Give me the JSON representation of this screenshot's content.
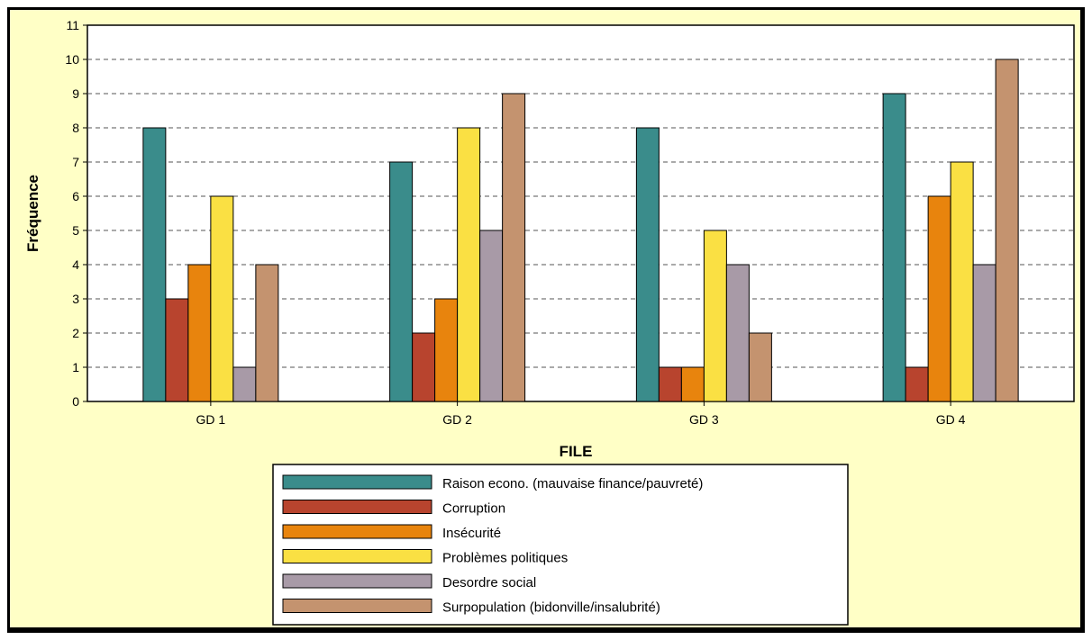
{
  "chart_data": {
    "type": "bar",
    "title": "",
    "xlabel": "FILE",
    "ylabel": "Fréquence",
    "ylim": [
      0,
      11
    ],
    "yticks": [
      0,
      1,
      2,
      3,
      4,
      5,
      6,
      7,
      8,
      9,
      10,
      11
    ],
    "grid": "horizontal dashed",
    "legend_position": "bottom",
    "categories": [
      "GD 1",
      "GD 2",
      "GD 3",
      "GD 4"
    ],
    "series": [
      {
        "name": "Raison econo. (mauvaise finance/pauvreté)",
        "color": "#3a8c8b",
        "values": [
          8,
          7,
          8,
          9
        ]
      },
      {
        "name": "Corruption",
        "color": "#b8442e",
        "values": [
          3,
          2,
          1,
          1
        ]
      },
      {
        "name": "Insécurité",
        "color": "#e8840d",
        "values": [
          4,
          3,
          1,
          6
        ]
      },
      {
        "name": "Problèmes politiques",
        "color": "#fae043",
        "values": [
          6,
          8,
          5,
          7
        ]
      },
      {
        "name": "Desordre social",
        "color": "#a89aa7",
        "values": [
          1,
          5,
          4,
          4
        ]
      },
      {
        "name": "Surpopulation (bidonville/insalubrité)",
        "color": "#c4936f",
        "values": [
          4,
          9,
          2,
          10
        ]
      }
    ]
  }
}
